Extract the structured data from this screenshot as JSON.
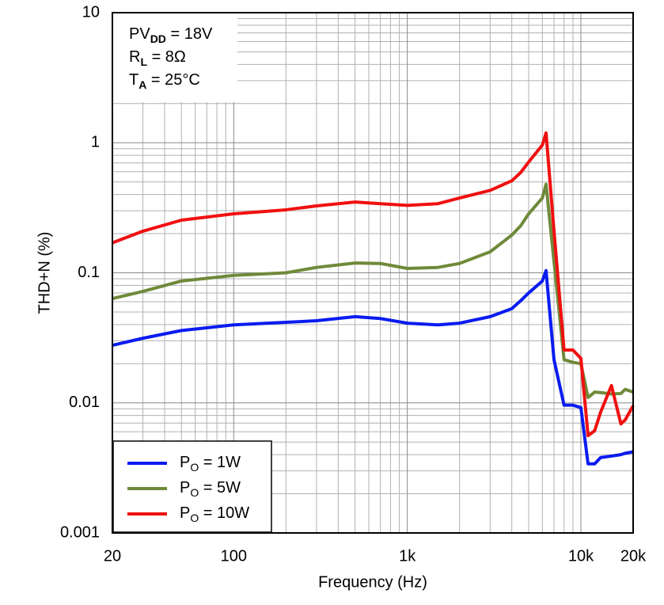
{
  "chart_data": {
    "type": "line",
    "x_label": "Frequency (Hz)",
    "y_label": "THD+N (%)",
    "annotations": [
      [
        "PV",
        "DD",
        " = 18V"
      ],
      [
        "R",
        "L",
        " = 8Ω"
      ],
      [
        "T",
        "A",
        " = 25°C"
      ]
    ],
    "log_x": true,
    "log_y": true,
    "grid": true,
    "legend_position": "lower-left",
    "xlim": [
      20,
      20000
    ],
    "xticks": [
      20,
      100,
      {
        "value": 1000,
        "label": "1k"
      },
      {
        "value": 10000,
        "label": "10k"
      },
      {
        "value": 20000,
        "label": "20k"
      }
    ],
    "ylim": [
      0.001,
      10
    ],
    "yticks": [
      0.001,
      0.01,
      0.1,
      1,
      10
    ],
    "x": [
      20,
      30,
      50,
      100,
      200,
      300,
      500,
      700,
      1000,
      1500,
      2000,
      3000,
      4000,
      4500,
      5000,
      6000,
      6300,
      7000,
      8000,
      9000,
      10000,
      11000,
      12000,
      13000,
      15000,
      17000,
      18000,
      20000
    ],
    "series": [
      {
        "name": [
          "P",
          "O",
          " = 1W"
        ],
        "color": "#0a1cf0",
        "values": [
          0.0277,
          0.0314,
          0.036,
          0.0398,
          0.0416,
          0.0428,
          0.046,
          0.0445,
          0.041,
          0.0398,
          0.041,
          0.046,
          0.053,
          0.061,
          0.07,
          0.0865,
          0.104,
          0.0215,
          0.0096,
          0.0096,
          0.0092,
          0.0034,
          0.0034,
          0.0038,
          0.0039,
          0.004,
          0.0041,
          0.0042
        ]
      },
      {
        "name": [
          "P",
          "O",
          " = 5W"
        ],
        "color": "#6f8a3a",
        "values": [
          0.0634,
          0.072,
          0.0865,
          0.0955,
          0.1,
          0.11,
          0.119,
          0.118,
          0.108,
          0.11,
          0.118,
          0.145,
          0.195,
          0.23,
          0.284,
          0.376,
          0.48,
          0.122,
          0.0215,
          0.0205,
          0.02,
          0.011,
          0.0121,
          0.012,
          0.0117,
          0.0118,
          0.0127,
          0.0121
        ]
      },
      {
        "name": [
          "P",
          "O",
          " = 10W"
        ],
        "color": "#f01010",
        "values": [
          0.17,
          0.209,
          0.254,
          0.284,
          0.305,
          0.327,
          0.35,
          0.34,
          0.33,
          0.34,
          0.376,
          0.43,
          0.51,
          0.59,
          0.71,
          0.96,
          1.19,
          0.21,
          0.0255,
          0.0255,
          0.022,
          0.0056,
          0.0061,
          0.0085,
          0.0136,
          0.0069,
          0.0074,
          0.0095
        ]
      }
    ]
  }
}
